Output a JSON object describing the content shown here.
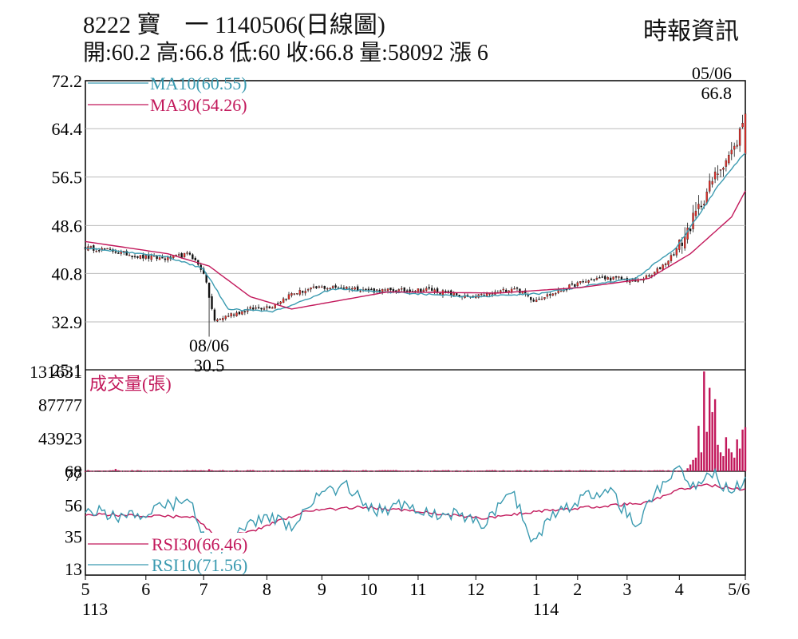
{
  "header": {
    "title": "8222  寶　一 1140506(日線圖)",
    "source": "時報資訊",
    "stats": "開:60.2 高:66.8 低:60 收:66.8 量:58092 漲 6"
  },
  "colors": {
    "up": "#e0302a",
    "down": "#111111",
    "ma10": "#3a9ab0",
    "ma30": "#c2185b",
    "volume": "#c2185b",
    "rsi30": "#c2185b",
    "rsi10": "#3a9ab0",
    "grid": "#bbbbbb"
  },
  "chart_data": [
    {
      "type": "candlestick",
      "name": "price",
      "ylim": [
        25.1,
        72.2
      ],
      "yticks": [
        "72.2",
        "64.4",
        "56.5",
        "48.6",
        "40.8",
        "32.9",
        "25.1"
      ],
      "legend": [
        {
          "label": "MA10(60.55)",
          "color": "#3a9ab0"
        },
        {
          "label": "MA30(54.26)",
          "color": "#c2185b"
        }
      ],
      "annotations": [
        {
          "date": "08/06",
          "value": "30.5",
          "x_index": 45,
          "y": 30.5
        },
        {
          "date": "05/06",
          "value": "66.8",
          "x_index": 240,
          "y": 66.8
        }
      ],
      "close_keypoints": [
        [
          0,
          45
        ],
        [
          10,
          44.5
        ],
        [
          20,
          43.5
        ],
        [
          30,
          43.2
        ],
        [
          38,
          44
        ],
        [
          43,
          41
        ],
        [
          47,
          33
        ],
        [
          52,
          34
        ],
        [
          60,
          35
        ],
        [
          68,
          35.5
        ],
        [
          75,
          37.5
        ],
        [
          85,
          38.5
        ],
        [
          95,
          38.5
        ],
        [
          105,
          38
        ],
        [
          115,
          38
        ],
        [
          125,
          38.2
        ],
        [
          133,
          37.5
        ],
        [
          140,
          36.8
        ],
        [
          148,
          37.5
        ],
        [
          156,
          38.5
        ],
        [
          163,
          36.5
        ],
        [
          170,
          37.5
        ],
        [
          178,
          39
        ],
        [
          186,
          40
        ],
        [
          194,
          40
        ],
        [
          200,
          39.5
        ],
        [
          206,
          40.5
        ],
        [
          212,
          43
        ],
        [
          217,
          46
        ],
        [
          222,
          50.5
        ],
        [
          227,
          55
        ],
        [
          232,
          59
        ],
        [
          236,
          61
        ],
        [
          240,
          66.8
        ]
      ],
      "ma10_keypoints": [
        [
          0,
          45
        ],
        [
          30,
          43.5
        ],
        [
          43,
          41.5
        ],
        [
          52,
          35
        ],
        [
          68,
          34.5
        ],
        [
          90,
          38.3
        ],
        [
          140,
          37
        ],
        [
          165,
          37.5
        ],
        [
          200,
          40
        ],
        [
          215,
          45
        ],
        [
          230,
          55
        ],
        [
          240,
          60.55
        ]
      ],
      "ma30_keypoints": [
        [
          0,
          46
        ],
        [
          30,
          44
        ],
        [
          45,
          42
        ],
        [
          60,
          37
        ],
        [
          75,
          35
        ],
        [
          110,
          37.8
        ],
        [
          150,
          37.6
        ],
        [
          180,
          38.5
        ],
        [
          205,
          40
        ],
        [
          220,
          44
        ],
        [
          235,
          50
        ],
        [
          240,
          54.26
        ]
      ]
    },
    {
      "type": "bar",
      "name": "volume",
      "title": "成交量(張)",
      "ylim": [
        68,
        131631
      ],
      "yticks": [
        "131631",
        "87777",
        "43923",
        "68"
      ],
      "note": "low volume until early April 114, then spikes peaking near 131631",
      "spike_values": [
        4000,
        9000,
        15000,
        18000,
        60000,
        25000,
        131631,
        52000,
        110000,
        78000,
        95000,
        35000,
        25000,
        20000,
        45000,
        30000,
        25000,
        18000,
        42000,
        30000,
        55000,
        58092
      ]
    },
    {
      "type": "line",
      "name": "rsi",
      "ylim": [
        13,
        77
      ],
      "yticks": [
        "77",
        "56",
        "35",
        "13"
      ],
      "legend": [
        {
          "label": "RSI30(66.46)",
          "color": "#c2185b"
        },
        {
          "label": "RSI10(71.56)",
          "color": "#3a9ab0"
        }
      ],
      "rsi30_keypoints": [
        [
          0,
          50
        ],
        [
          40,
          48
        ],
        [
          47,
          35
        ],
        [
          60,
          38
        ],
        [
          80,
          52
        ],
        [
          100,
          55
        ],
        [
          120,
          52
        ],
        [
          145,
          47
        ],
        [
          165,
          52
        ],
        [
          185,
          55
        ],
        [
          205,
          58
        ],
        [
          215,
          66
        ],
        [
          225,
          70
        ],
        [
          240,
          66.46
        ]
      ],
      "rsi10_keypoints": [
        [
          0,
          55
        ],
        [
          10,
          48
        ],
        [
          20,
          50
        ],
        [
          30,
          56
        ],
        [
          38,
          60
        ],
        [
          43,
          35
        ],
        [
          47,
          15
        ],
        [
          55,
          38
        ],
        [
          65,
          48
        ],
        [
          75,
          42
        ],
        [
          85,
          63
        ],
        [
          95,
          70
        ],
        [
          105,
          52
        ],
        [
          115,
          56
        ],
        [
          125,
          50
        ],
        [
          135,
          50
        ],
        [
          145,
          42
        ],
        [
          155,
          66
        ],
        [
          163,
          30
        ],
        [
          170,
          50
        ],
        [
          180,
          60
        ],
        [
          190,
          68
        ],
        [
          200,
          42
        ],
        [
          208,
          65
        ],
        [
          215,
          80
        ],
        [
          222,
          68
        ],
        [
          228,
          78
        ],
        [
          234,
          65
        ],
        [
          240,
          71.56
        ]
      ]
    }
  ],
  "x_axis": {
    "labels": [
      {
        "text": "5",
        "x_index": 0
      },
      {
        "text": "6",
        "x_index": 22
      },
      {
        "text": "7",
        "x_index": 43
      },
      {
        "text": "8",
        "x_index": 66
      },
      {
        "text": "9",
        "x_index": 86
      },
      {
        "text": "10",
        "x_index": 103
      },
      {
        "text": "11",
        "x_index": 121
      },
      {
        "text": "12",
        "x_index": 142
      },
      {
        "text": "1",
        "x_index": 164
      },
      {
        "text": "2",
        "x_index": 179
      },
      {
        "text": "3",
        "x_index": 197
      },
      {
        "text": "4",
        "x_index": 216
      },
      {
        "text": "5/6",
        "x_index": 240
      }
    ],
    "year_labels": [
      {
        "text": "113",
        "x_index": 0
      },
      {
        "text": "114",
        "x_index": 164
      }
    ]
  }
}
